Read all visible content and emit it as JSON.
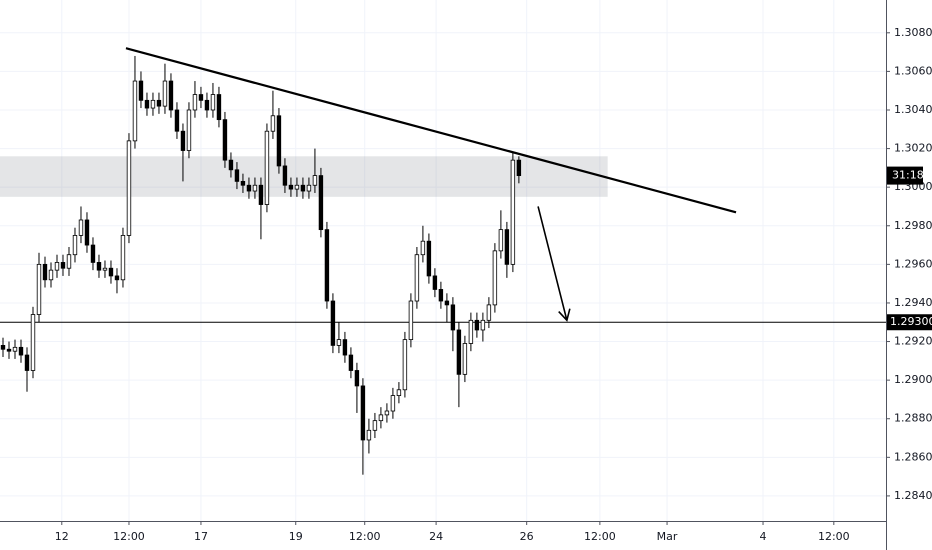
{
  "chart_data": {
    "type": "candlestick",
    "open": [
      1.2918,
      1.2916,
      1.2915,
      1.2917,
      1.2913,
      1.2905,
      1.2934,
      1.296,
      1.2952,
      1.2957,
      1.2961,
      1.2958,
      1.2965,
      1.2975,
      1.2983,
      1.297,
      1.2961,
      1.2957,
      1.2958,
      1.2954,
      1.2952,
      1.2975,
      1.3024,
      1.3055,
      1.3045,
      1.3041,
      1.3045,
      1.3042,
      1.3055,
      1.304,
      1.3029,
      1.3019,
      1.304,
      1.3048,
      1.3045,
      1.304,
      1.3048,
      1.3035,
      1.3014,
      1.3009,
      1.3003,
      1.3001,
      1.2998,
      1.3001,
      1.2991,
      1.3029,
      1.3037,
      1.3011,
      1.3001,
      1.2999,
      1.3001,
      1.2998,
      1.3001,
      1.3006,
      1.2978,
      1.2941,
      1.2918,
      1.2921,
      1.2913,
      1.2905,
      1.2897,
      1.2869,
      1.2874,
      1.2879,
      1.2882,
      1.2884,
      1.2892,
      1.2895,
      1.2921,
      1.2941,
      1.2965,
      1.2972,
      1.2954,
      1.2947,
      1.2941,
      1.2939,
      1.2926,
      1.2903,
      1.2919,
      1.2931,
      1.2926,
      1.2931,
      1.2939,
      1.2967,
      1.2978,
      1.296,
      1.3014
    ],
    "high": [
      1.2922,
      1.292,
      1.2921,
      1.2921,
      1.2917,
      1.2938,
      1.2966,
      1.2964,
      1.2961,
      1.2965,
      1.2965,
      1.2969,
      1.2979,
      1.299,
      1.2987,
      1.2974,
      1.2965,
      1.2962,
      1.2962,
      1.2958,
      1.2979,
      1.3028,
      1.3068,
      1.306,
      1.3049,
      1.3049,
      1.3049,
      1.3064,
      1.3059,
      1.3044,
      1.3033,
      1.3044,
      1.3055,
      1.3052,
      1.3049,
      1.3054,
      1.3052,
      1.3039,
      1.3018,
      1.3013,
      1.3007,
      1.3005,
      1.3005,
      1.3005,
      1.3033,
      1.305,
      1.3041,
      1.3015,
      1.3005,
      1.3005,
      1.3005,
      1.3005,
      1.302,
      1.301,
      1.2982,
      1.2945,
      1.293,
      1.2925,
      1.2917,
      1.2909,
      1.2901,
      1.288,
      1.2883,
      1.2886,
      1.2888,
      1.2896,
      1.2899,
      1.2925,
      1.2945,
      1.2969,
      1.298,
      1.2976,
      1.2958,
      1.2951,
      1.2945,
      1.2943,
      1.293,
      1.2923,
      1.2935,
      1.2935,
      1.2935,
      1.2943,
      1.2971,
      1.2988,
      1.2982,
      1.3018,
      1.3016
    ],
    "low": [
      1.2912,
      1.2911,
      1.2911,
      1.2909,
      1.2894,
      1.2901,
      1.293,
      1.2948,
      1.2948,
      1.2953,
      1.2954,
      1.2954,
      1.2961,
      1.2971,
      1.2966,
      1.2957,
      1.2953,
      1.2953,
      1.295,
      1.2945,
      1.2948,
      1.2971,
      1.302,
      1.3041,
      1.3037,
      1.3037,
      1.3038,
      1.3038,
      1.3036,
      1.3025,
      1.3003,
      1.3015,
      1.3036,
      1.3041,
      1.3036,
      1.3036,
      1.3031,
      1.301,
      1.3005,
      1.2999,
      1.2997,
      1.2994,
      1.2994,
      1.2973,
      1.2987,
      1.3025,
      1.3007,
      1.2997,
      1.2995,
      1.2995,
      1.2994,
      1.2994,
      1.2997,
      1.2974,
      1.2937,
      1.2914,
      1.2914,
      1.2909,
      1.2901,
      1.2883,
      1.2851,
      1.2862,
      1.287,
      1.2875,
      1.2878,
      1.288,
      1.2888,
      1.2891,
      1.2917,
      1.2937,
      1.2961,
      1.295,
      1.2943,
      1.2937,
      1.293,
      1.2915,
      1.2886,
      1.2899,
      1.2915,
      1.2922,
      1.292,
      1.2927,
      1.2935,
      1.2963,
      1.2953,
      1.2956,
      1.3002
    ],
    "close": [
      1.2916,
      1.2915,
      1.2917,
      1.2913,
      1.2905,
      1.2934,
      1.296,
      1.2952,
      1.2957,
      1.2961,
      1.2958,
      1.2965,
      1.2975,
      1.2983,
      1.297,
      1.2961,
      1.2957,
      1.2958,
      1.2954,
      1.2952,
      1.2975,
      1.3024,
      1.3055,
      1.3045,
      1.3041,
      1.3045,
      1.3042,
      1.3055,
      1.304,
      1.3029,
      1.3019,
      1.304,
      1.3048,
      1.3045,
      1.304,
      1.3048,
      1.3035,
      1.3014,
      1.3009,
      1.3003,
      1.3001,
      1.2998,
      1.3001,
      1.2991,
      1.3029,
      1.3037,
      1.3011,
      1.3001,
      1.2999,
      1.3001,
      1.2998,
      1.3001,
      1.3006,
      1.2978,
      1.2941,
      1.2918,
      1.2921,
      1.2913,
      1.2905,
      1.2897,
      1.2869,
      1.2874,
      1.2879,
      1.2882,
      1.2884,
      1.2892,
      1.2895,
      1.2921,
      1.2941,
      1.2965,
      1.2972,
      1.2954,
      1.2947,
      1.2941,
      1.2939,
      1.2926,
      1.2903,
      1.2919,
      1.2931,
      1.2926,
      1.2931,
      1.2939,
      1.2967,
      1.2978,
      1.296,
      1.3014,
      1.3006
    ],
    "up_color": "#ffffff",
    "down_color": "#000000",
    "wick_color": "#000000",
    "xlim": [
      0,
      147.7
    ],
    "ylim": [
      1.2827,
      1.3097
    ],
    "xticks": [
      {
        "value": 10.3,
        "label": "12"
      },
      {
        "value": 21.5,
        "label": "12:00"
      },
      {
        "value": 33.5,
        "label": "17"
      },
      {
        "value": 49.3,
        "label": "19"
      },
      {
        "value": 60.8,
        "label": "12:00"
      },
      {
        "value": 72.7,
        "label": "24"
      },
      {
        "value": 87.8,
        "label": "26"
      },
      {
        "value": 100,
        "label": "12:00"
      },
      {
        "value": 111.2,
        "label": "Mar"
      },
      {
        "value": 127.2,
        "label": "4"
      },
      {
        "value": 139,
        "label": "12:00"
      }
    ],
    "yticks": [
      {
        "value": 1.308,
        "label": "1.30800"
      },
      {
        "value": 1.306,
        "label": "1.30600"
      },
      {
        "value": 1.304,
        "label": "1.30400"
      },
      {
        "value": 1.302,
        "label": "1.30200"
      },
      {
        "value": 1.3,
        "label": "1.30000"
      },
      {
        "value": 1.298,
        "label": "1.29800"
      },
      {
        "value": 1.296,
        "label": "1.29600"
      },
      {
        "value": 1.294,
        "label": "1.29400"
      },
      {
        "value": 1.292,
        "label": "1.29200"
      },
      {
        "value": 1.29,
        "label": "1.29000"
      },
      {
        "value": 1.288,
        "label": "1.28800"
      },
      {
        "value": 1.286,
        "label": "1.28600"
      },
      {
        "value": 1.284,
        "label": "1.28400"
      }
    ],
    "grid": true,
    "trend_line": {
      "x": [
        21,
        122.7
      ],
      "y": [
        1.3072,
        1.2987
      ]
    },
    "zone": {
      "x": [
        0,
        101.3
      ],
      "y": [
        1.2995,
        1.3016
      ]
    },
    "horizontal_line": {
      "value": 1.293,
      "label": "1.29300"
    },
    "arrow": {
      "x": [
        89.7,
        94.5
      ],
      "y": [
        1.299,
        1.2931
      ]
    },
    "countdown": "31:18"
  }
}
